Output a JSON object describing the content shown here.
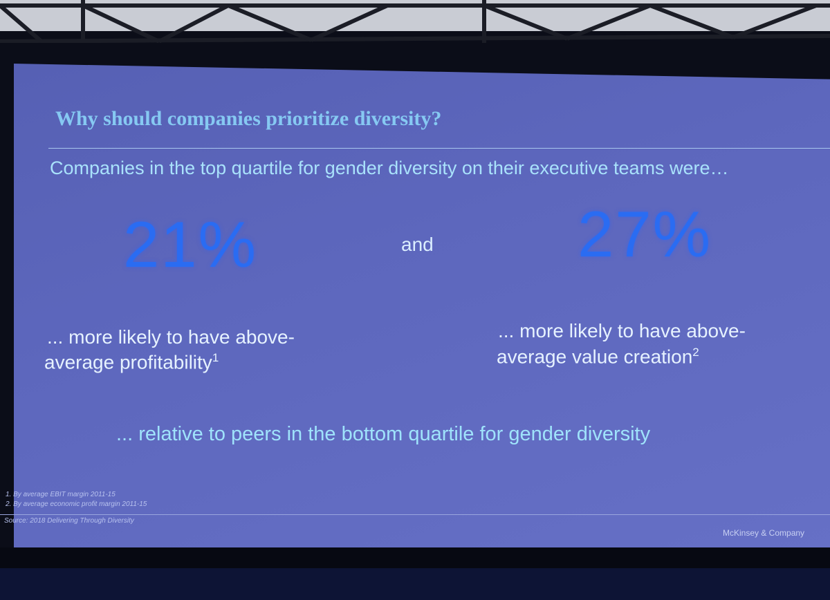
{
  "slide": {
    "title": "Why should companies prioritize diversity?",
    "subtitle": "Companies in the top quartile for gender diversity on their executive teams were…",
    "stats": [
      {
        "value": "21%",
        "lines": [
          "... more likely to have above-",
          "average profitability"
        ],
        "note": "1"
      },
      {
        "value": "27%",
        "lines": [
          "... more likely to have above-",
          "average value creation"
        ],
        "note": "2"
      }
    ],
    "connector": "and",
    "conclusion": "... relative to peers in the bottom quartile for gender diversity",
    "footnotes": [
      "1. By average EBIT margin 2011-15",
      "2. By average economic profit margin 2011-15"
    ],
    "source": "Source: 2018 Delivering Through Diversity",
    "brand": "McKinsey & Company"
  }
}
